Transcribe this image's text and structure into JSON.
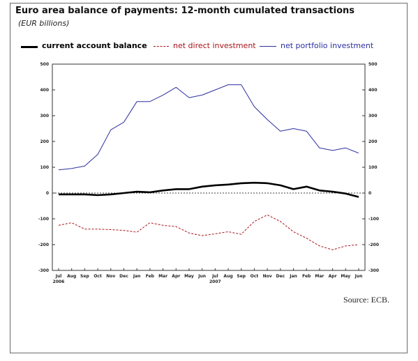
{
  "chart_data": {
    "type": "line",
    "title": "Euro area balance of payments: 12-month cumulated transactions",
    "subtitle": "(EUR billions)",
    "source": "Source: ECB.",
    "categories": [
      "Jul",
      "Aug",
      "Sep",
      "Oct",
      "Nov",
      "Dec",
      "Jan",
      "Feb",
      "Mar",
      "Apr",
      "May",
      "Jun",
      "Jul",
      "Aug",
      "Sep",
      "Oct",
      "Nov",
      "Dec",
      "Jan",
      "Feb",
      "Mar",
      "Apr",
      "May",
      "Jun"
    ],
    "year_labels": [
      {
        "index": 0,
        "label": "2006"
      },
      {
        "index": 12,
        "label": "2007"
      }
    ],
    "ylim": [
      -300,
      500
    ],
    "yticks": [
      -300,
      -200,
      -100,
      0,
      100,
      200,
      300,
      400,
      500
    ],
    "legend_position": "top",
    "series": [
      {
        "name": "current account balance",
        "style": "solid-thick",
        "color": "#000000",
        "values": [
          -5,
          -5,
          -5,
          -8,
          -5,
          0,
          5,
          3,
          10,
          15,
          15,
          25,
          30,
          33,
          38,
          40,
          38,
          30,
          15,
          25,
          10,
          5,
          -2,
          -15
        ]
      },
      {
        "name": "net direct investment",
        "style": "dashed",
        "color": "#a8131b",
        "values": [
          -125,
          -115,
          -140,
          -140,
          -142,
          -145,
          -152,
          -115,
          -125,
          -130,
          -155,
          -165,
          -158,
          -150,
          -160,
          -110,
          -85,
          -110,
          -150,
          -175,
          -205,
          -220,
          -205,
          -200
        ]
      },
      {
        "name": "net portfolio investment",
        "style": "solid",
        "color": "#2b2fa0",
        "values": [
          90,
          95,
          105,
          150,
          245,
          275,
          355,
          355,
          380,
          410,
          370,
          380,
          400,
          420,
          420,
          335,
          285,
          240,
          250,
          240,
          175,
          165,
          175,
          155
        ]
      }
    ]
  }
}
